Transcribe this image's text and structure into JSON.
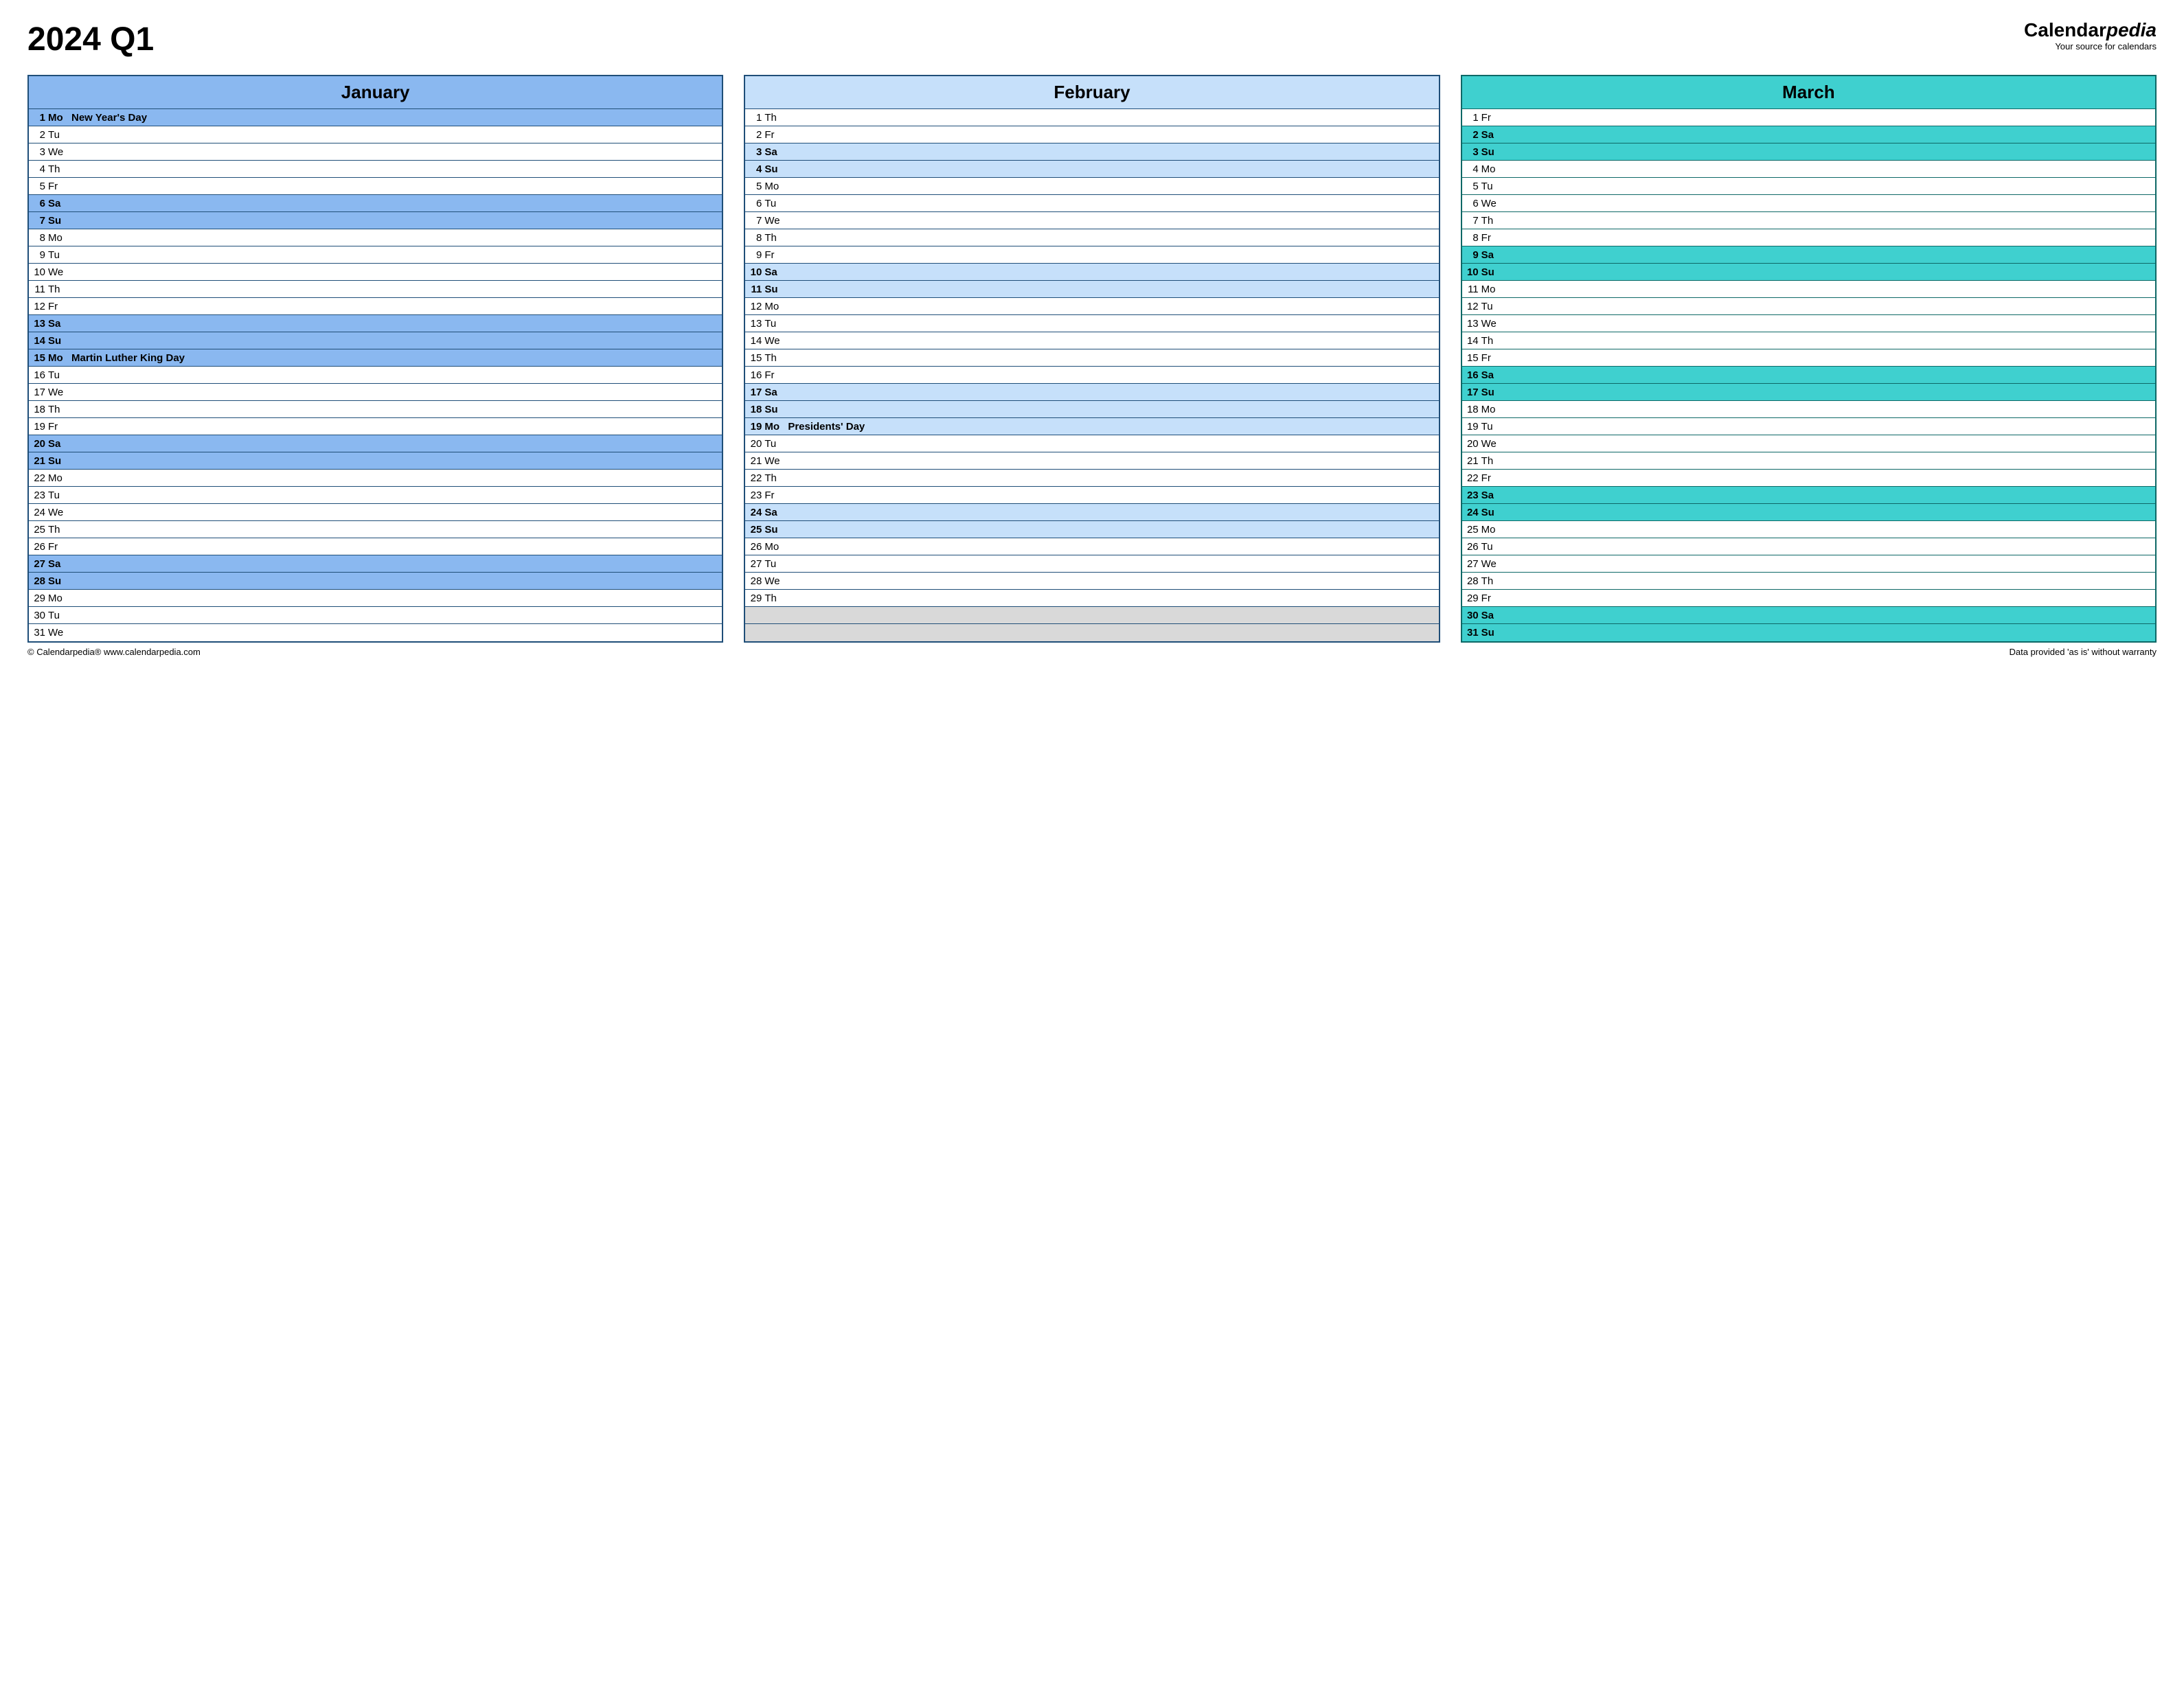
{
  "title": "2024 Q1",
  "brand": {
    "name_part1": "Calendar",
    "name_part2": "pedia",
    "tagline": "Your source for calendars"
  },
  "footer": {
    "left": "© Calendarpedia®   www.calendarpedia.com",
    "right": "Data provided 'as is' without warranty"
  },
  "layout": {
    "max_days": 31,
    "border_color_default": "#1f4e78",
    "empty_cell_color": "#d9d9d9"
  },
  "months": [
    {
      "name": "January",
      "header_bg": "#8ab8f0",
      "weekend_bg": "#8ab8f0",
      "holiday_bg": "#8ab8f0",
      "border_color": "#1f4e78",
      "days": [
        {
          "n": 1,
          "dow": "Mo",
          "event": "New Year's Day",
          "type": "holiday"
        },
        {
          "n": 2,
          "dow": "Tu",
          "event": "",
          "type": "weekday"
        },
        {
          "n": 3,
          "dow": "We",
          "event": "",
          "type": "weekday"
        },
        {
          "n": 4,
          "dow": "Th",
          "event": "",
          "type": "weekday"
        },
        {
          "n": 5,
          "dow": "Fr",
          "event": "",
          "type": "weekday"
        },
        {
          "n": 6,
          "dow": "Sa",
          "event": "",
          "type": "weekend"
        },
        {
          "n": 7,
          "dow": "Su",
          "event": "",
          "type": "weekend"
        },
        {
          "n": 8,
          "dow": "Mo",
          "event": "",
          "type": "weekday"
        },
        {
          "n": 9,
          "dow": "Tu",
          "event": "",
          "type": "weekday"
        },
        {
          "n": 10,
          "dow": "We",
          "event": "",
          "type": "weekday"
        },
        {
          "n": 11,
          "dow": "Th",
          "event": "",
          "type": "weekday"
        },
        {
          "n": 12,
          "dow": "Fr",
          "event": "",
          "type": "weekday"
        },
        {
          "n": 13,
          "dow": "Sa",
          "event": "",
          "type": "weekend"
        },
        {
          "n": 14,
          "dow": "Su",
          "event": "",
          "type": "weekend"
        },
        {
          "n": 15,
          "dow": "Mo",
          "event": "Martin Luther King Day",
          "type": "holiday"
        },
        {
          "n": 16,
          "dow": "Tu",
          "event": "",
          "type": "weekday"
        },
        {
          "n": 17,
          "dow": "We",
          "event": "",
          "type": "weekday"
        },
        {
          "n": 18,
          "dow": "Th",
          "event": "",
          "type": "weekday"
        },
        {
          "n": 19,
          "dow": "Fr",
          "event": "",
          "type": "weekday"
        },
        {
          "n": 20,
          "dow": "Sa",
          "event": "",
          "type": "weekend"
        },
        {
          "n": 21,
          "dow": "Su",
          "event": "",
          "type": "weekend"
        },
        {
          "n": 22,
          "dow": "Mo",
          "event": "",
          "type": "weekday"
        },
        {
          "n": 23,
          "dow": "Tu",
          "event": "",
          "type": "weekday"
        },
        {
          "n": 24,
          "dow": "We",
          "event": "",
          "type": "weekday"
        },
        {
          "n": 25,
          "dow": "Th",
          "event": "",
          "type": "weekday"
        },
        {
          "n": 26,
          "dow": "Fr",
          "event": "",
          "type": "weekday"
        },
        {
          "n": 27,
          "dow": "Sa",
          "event": "",
          "type": "weekend"
        },
        {
          "n": 28,
          "dow": "Su",
          "event": "",
          "type": "weekend"
        },
        {
          "n": 29,
          "dow": "Mo",
          "event": "",
          "type": "weekday"
        },
        {
          "n": 30,
          "dow": "Tu",
          "event": "",
          "type": "weekday"
        },
        {
          "n": 31,
          "dow": "We",
          "event": "",
          "type": "weekday"
        }
      ]
    },
    {
      "name": "February",
      "header_bg": "#c6e0fa",
      "weekend_bg": "#c6e0fa",
      "holiday_bg": "#c6e0fa",
      "border_color": "#1f4e78",
      "days": [
        {
          "n": 1,
          "dow": "Th",
          "event": "",
          "type": "weekday"
        },
        {
          "n": 2,
          "dow": "Fr",
          "event": "",
          "type": "weekday"
        },
        {
          "n": 3,
          "dow": "Sa",
          "event": "",
          "type": "weekend"
        },
        {
          "n": 4,
          "dow": "Su",
          "event": "",
          "type": "weekend"
        },
        {
          "n": 5,
          "dow": "Mo",
          "event": "",
          "type": "weekday"
        },
        {
          "n": 6,
          "dow": "Tu",
          "event": "",
          "type": "weekday"
        },
        {
          "n": 7,
          "dow": "We",
          "event": "",
          "type": "weekday"
        },
        {
          "n": 8,
          "dow": "Th",
          "event": "",
          "type": "weekday"
        },
        {
          "n": 9,
          "dow": "Fr",
          "event": "",
          "type": "weekday"
        },
        {
          "n": 10,
          "dow": "Sa",
          "event": "",
          "type": "weekend"
        },
        {
          "n": 11,
          "dow": "Su",
          "event": "",
          "type": "weekend"
        },
        {
          "n": 12,
          "dow": "Mo",
          "event": "",
          "type": "weekday"
        },
        {
          "n": 13,
          "dow": "Tu",
          "event": "",
          "type": "weekday"
        },
        {
          "n": 14,
          "dow": "We",
          "event": "",
          "type": "weekday"
        },
        {
          "n": 15,
          "dow": "Th",
          "event": "",
          "type": "weekday"
        },
        {
          "n": 16,
          "dow": "Fr",
          "event": "",
          "type": "weekday"
        },
        {
          "n": 17,
          "dow": "Sa",
          "event": "",
          "type": "weekend"
        },
        {
          "n": 18,
          "dow": "Su",
          "event": "",
          "type": "weekend"
        },
        {
          "n": 19,
          "dow": "Mo",
          "event": "Presidents' Day",
          "type": "holiday"
        },
        {
          "n": 20,
          "dow": "Tu",
          "event": "",
          "type": "weekday"
        },
        {
          "n": 21,
          "dow": "We",
          "event": "",
          "type": "weekday"
        },
        {
          "n": 22,
          "dow": "Th",
          "event": "",
          "type": "weekday"
        },
        {
          "n": 23,
          "dow": "Fr",
          "event": "",
          "type": "weekday"
        },
        {
          "n": 24,
          "dow": "Sa",
          "event": "",
          "type": "weekend"
        },
        {
          "n": 25,
          "dow": "Su",
          "event": "",
          "type": "weekend"
        },
        {
          "n": 26,
          "dow": "Mo",
          "event": "",
          "type": "weekday"
        },
        {
          "n": 27,
          "dow": "Tu",
          "event": "",
          "type": "weekday"
        },
        {
          "n": 28,
          "dow": "We",
          "event": "",
          "type": "weekday"
        },
        {
          "n": 29,
          "dow": "Th",
          "event": "",
          "type": "weekday"
        }
      ]
    },
    {
      "name": "March",
      "header_bg": "#3fd0cf",
      "weekend_bg": "#3fd0cf",
      "holiday_bg": "#3fd0cf",
      "border_color": "#0d6866",
      "days": [
        {
          "n": 1,
          "dow": "Fr",
          "event": "",
          "type": "weekday"
        },
        {
          "n": 2,
          "dow": "Sa",
          "event": "",
          "type": "weekend"
        },
        {
          "n": 3,
          "dow": "Su",
          "event": "",
          "type": "weekend"
        },
        {
          "n": 4,
          "dow": "Mo",
          "event": "",
          "type": "weekday"
        },
        {
          "n": 5,
          "dow": "Tu",
          "event": "",
          "type": "weekday"
        },
        {
          "n": 6,
          "dow": "We",
          "event": "",
          "type": "weekday"
        },
        {
          "n": 7,
          "dow": "Th",
          "event": "",
          "type": "weekday"
        },
        {
          "n": 8,
          "dow": "Fr",
          "event": "",
          "type": "weekday"
        },
        {
          "n": 9,
          "dow": "Sa",
          "event": "",
          "type": "weekend"
        },
        {
          "n": 10,
          "dow": "Su",
          "event": "",
          "type": "weekend"
        },
        {
          "n": 11,
          "dow": "Mo",
          "event": "",
          "type": "weekday"
        },
        {
          "n": 12,
          "dow": "Tu",
          "event": "",
          "type": "weekday"
        },
        {
          "n": 13,
          "dow": "We",
          "event": "",
          "type": "weekday"
        },
        {
          "n": 14,
          "dow": "Th",
          "event": "",
          "type": "weekday"
        },
        {
          "n": 15,
          "dow": "Fr",
          "event": "",
          "type": "weekday"
        },
        {
          "n": 16,
          "dow": "Sa",
          "event": "",
          "type": "weekend"
        },
        {
          "n": 17,
          "dow": "Su",
          "event": "",
          "type": "weekend"
        },
        {
          "n": 18,
          "dow": "Mo",
          "event": "",
          "type": "weekday"
        },
        {
          "n": 19,
          "dow": "Tu",
          "event": "",
          "type": "weekday"
        },
        {
          "n": 20,
          "dow": "We",
          "event": "",
          "type": "weekday"
        },
        {
          "n": 21,
          "dow": "Th",
          "event": "",
          "type": "weekday"
        },
        {
          "n": 22,
          "dow": "Fr",
          "event": "",
          "type": "weekday"
        },
        {
          "n": 23,
          "dow": "Sa",
          "event": "",
          "type": "weekend"
        },
        {
          "n": 24,
          "dow": "Su",
          "event": "",
          "type": "weekend"
        },
        {
          "n": 25,
          "dow": "Mo",
          "event": "",
          "type": "weekday"
        },
        {
          "n": 26,
          "dow": "Tu",
          "event": "",
          "type": "weekday"
        },
        {
          "n": 27,
          "dow": "We",
          "event": "",
          "type": "weekday"
        },
        {
          "n": 28,
          "dow": "Th",
          "event": "",
          "type": "weekday"
        },
        {
          "n": 29,
          "dow": "Fr",
          "event": "",
          "type": "weekday"
        },
        {
          "n": 30,
          "dow": "Sa",
          "event": "",
          "type": "weekend"
        },
        {
          "n": 31,
          "dow": "Su",
          "event": "",
          "type": "weekend"
        }
      ]
    }
  ]
}
